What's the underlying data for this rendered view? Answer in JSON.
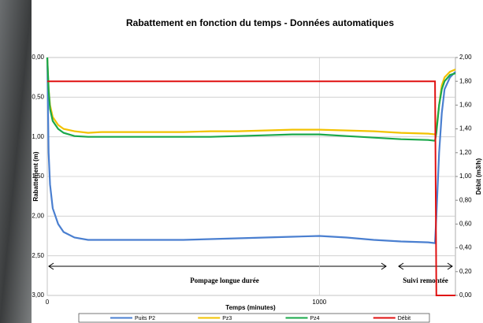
{
  "chart_data": {
    "type": "line",
    "title": "Rabattement en fonction du temps - Données automatiques",
    "x_label": "Temps (minutes)",
    "y_label": "Rabattement (m)",
    "y2_label": "Débit (m3/h)",
    "annotations": [
      "Pompage longue durée",
      "Suivi remontée"
    ],
    "x": [
      0,
      5,
      10,
      20,
      40,
      60,
      100,
      150,
      200,
      300,
      400,
      500,
      600,
      700,
      800,
      900,
      1000,
      1100,
      1200,
      1300,
      1400,
      1425,
      1430,
      1440,
      1450,
      1460,
      1480,
      1500
    ],
    "series": [
      {
        "name": "Puits P2",
        "color": "#4a7fd0",
        "values": [
          0,
          1.2,
          1.6,
          1.9,
          2.1,
          2.2,
          2.27,
          2.3,
          2.3,
          2.3,
          2.3,
          2.3,
          2.29,
          2.28,
          2.27,
          2.26,
          2.25,
          2.27,
          2.3,
          2.32,
          2.33,
          2.34,
          2.0,
          1.2,
          0.7,
          0.4,
          0.25,
          0.18
        ]
      },
      {
        "name": "Pz3",
        "color": "#f2c200",
        "values": [
          0,
          0.4,
          0.6,
          0.75,
          0.85,
          0.9,
          0.93,
          0.95,
          0.94,
          0.94,
          0.94,
          0.94,
          0.93,
          0.93,
          0.92,
          0.91,
          0.91,
          0.92,
          0.93,
          0.95,
          0.96,
          0.97,
          0.9,
          0.6,
          0.35,
          0.25,
          0.18,
          0.15
        ]
      },
      {
        "name": "Pz4",
        "color": "#1aa84a",
        "values": [
          0,
          0.4,
          0.65,
          0.8,
          0.9,
          0.95,
          0.99,
          1.0,
          1.0,
          1.0,
          1.0,
          1.0,
          1.0,
          0.99,
          0.98,
          0.97,
          0.97,
          0.99,
          1.01,
          1.03,
          1.04,
          1.05,
          0.95,
          0.6,
          0.4,
          0.3,
          0.22,
          0.2
        ]
      },
      {
        "name": "Débit",
        "color": "#e01010",
        "axis": "y2",
        "values": [
          1.8,
          1.8,
          1.8,
          1.8,
          1.8,
          1.8,
          1.8,
          1.8,
          1.8,
          1.8,
          1.8,
          1.8,
          1.8,
          1.8,
          1.8,
          1.8,
          1.8,
          1.8,
          1.8,
          1.8,
          1.8,
          1.8,
          0,
          0,
          0,
          0,
          0,
          0
        ]
      }
    ],
    "xlim": [
      0,
      1500
    ],
    "xticks": [
      0,
      1000
    ],
    "ylim": [
      3,
      0
    ],
    "y_reversed": true,
    "yticks": [
      {
        "value": 0,
        "label": "0,00"
      },
      {
        "value": 0.5,
        "label": "0,50"
      },
      {
        "value": 1,
        "label": "1,00"
      },
      {
        "value": 1.5,
        "label": "1,50"
      },
      {
        "value": 2,
        "label": "2,00"
      },
      {
        "value": 2.5,
        "label": "2,50"
      },
      {
        "value": 3,
        "label": "3,00"
      }
    ],
    "y2lim": [
      0,
      2
    ],
    "y2ticks": [
      {
        "value": 0,
        "label": "0,00"
      },
      {
        "value": 0.2,
        "label": "0,20"
      },
      {
        "value": 0.4,
        "label": "0,40"
      },
      {
        "value": 0.6,
        "label": "0,60"
      },
      {
        "value": 0.8,
        "label": "0,80"
      },
      {
        "value": 1,
        "label": "1,00"
      },
      {
        "value": 1.2,
        "label": "1,20"
      },
      {
        "value": 1.4,
        "label": "1,40"
      },
      {
        "value": 1.6,
        "label": "1,60"
      },
      {
        "value": 1.8,
        "label": "1,80"
      },
      {
        "value": 2,
        "label": "2,00"
      }
    ],
    "grid": true,
    "legend": "bottom"
  }
}
